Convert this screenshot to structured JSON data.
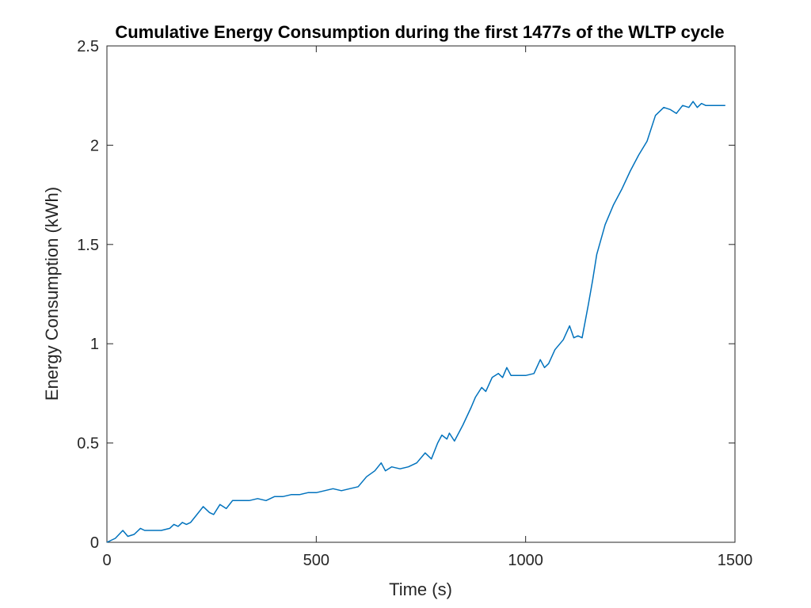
{
  "chart_data": {
    "type": "line",
    "title": "Cumulative Energy Consumption during the first 1477s of the WLTP cycle",
    "xlabel": "Time (s)",
    "ylabel": "Energy Consumption (kWh)",
    "xlim": [
      0,
      1500
    ],
    "ylim": [
      0,
      2.5
    ],
    "xticks": [
      0,
      500,
      1000,
      1500
    ],
    "xtick_labels": [
      "0",
      "500",
      "1000",
      "1500"
    ],
    "yticks": [
      0,
      0.5,
      1,
      1.5,
      2,
      2.5
    ],
    "ytick_labels": [
      "0",
      "0.5",
      "1",
      "1.5",
      "2",
      "2.5"
    ],
    "grid": false,
    "colors": {
      "line": "#0072BD",
      "axes": "#262626"
    },
    "series": [
      {
        "x": [
          0,
          20,
          38,
          50,
          65,
          80,
          90,
          100,
          130,
          150,
          160,
          170,
          180,
          190,
          200,
          215,
          230,
          245,
          255,
          270,
          285,
          300,
          320,
          340,
          360,
          380,
          400,
          420,
          440,
          460,
          480,
          500,
          520,
          540,
          560,
          580,
          600,
          620,
          640,
          655,
          665,
          680,
          700,
          720,
          740,
          760,
          775,
          790,
          800,
          812,
          818,
          830,
          850,
          870,
          880,
          895,
          905,
          920,
          935,
          945,
          955,
          965,
          985,
          1000,
          1020,
          1035,
          1045,
          1055,
          1070,
          1090,
          1105,
          1115,
          1125,
          1135,
          1150,
          1160,
          1170,
          1190,
          1210,
          1230,
          1250,
          1270,
          1290,
          1310,
          1330,
          1345,
          1360,
          1375,
          1390,
          1400,
          1410,
          1420,
          1430,
          1440,
          1450,
          1460,
          1477
        ],
        "y": [
          0.0,
          0.02,
          0.06,
          0.03,
          0.04,
          0.07,
          0.06,
          0.06,
          0.06,
          0.07,
          0.09,
          0.08,
          0.1,
          0.09,
          0.1,
          0.14,
          0.18,
          0.15,
          0.14,
          0.19,
          0.17,
          0.21,
          0.21,
          0.21,
          0.22,
          0.21,
          0.23,
          0.23,
          0.24,
          0.24,
          0.25,
          0.25,
          0.26,
          0.27,
          0.26,
          0.27,
          0.28,
          0.33,
          0.36,
          0.4,
          0.36,
          0.38,
          0.37,
          0.38,
          0.4,
          0.45,
          0.42,
          0.5,
          0.54,
          0.52,
          0.55,
          0.51,
          0.59,
          0.68,
          0.73,
          0.78,
          0.76,
          0.83,
          0.85,
          0.83,
          0.88,
          0.84,
          0.84,
          0.84,
          0.85,
          0.92,
          0.88,
          0.9,
          0.97,
          1.02,
          1.09,
          1.03,
          1.04,
          1.03,
          1.2,
          1.32,
          1.45,
          1.6,
          1.7,
          1.78,
          1.87,
          1.95,
          2.02,
          2.15,
          2.19,
          2.18,
          2.16,
          2.2,
          2.19,
          2.22,
          2.19,
          2.21,
          2.2,
          2.2,
          2.2,
          2.2,
          2.2
        ]
      }
    ]
  }
}
